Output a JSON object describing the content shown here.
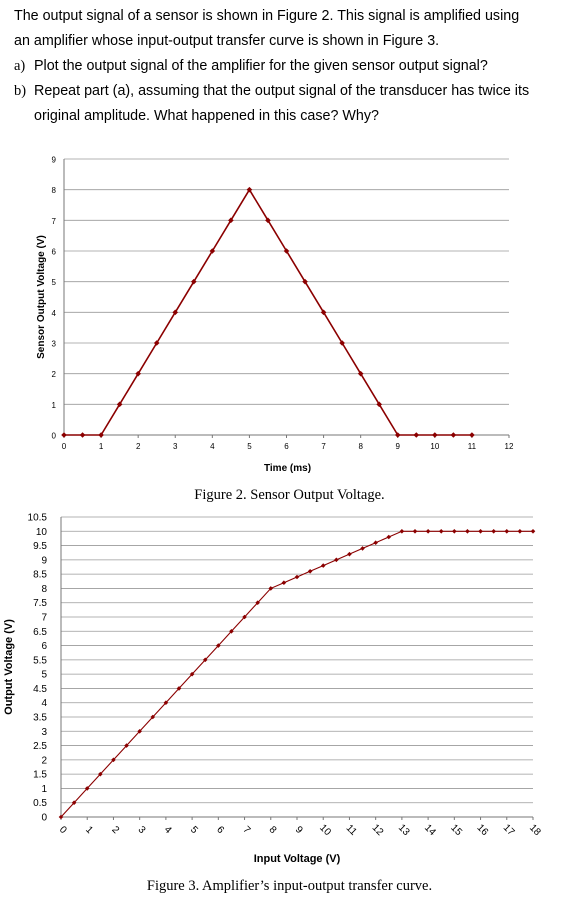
{
  "problem": {
    "intro_line1": "The output signal of a sensor is shown in Figure 2.  This signal is amplified using",
    "intro_line2": "an amplifier whose input-output transfer curve is shown in Figure 3.",
    "a_label": "a)",
    "a_text": "Plot the output signal of the amplifier for the given sensor output signal?",
    "b_label": "b)",
    "b_text_line1": "Repeat part (a), assuming that the output signal of the transducer has twice its",
    "b_text_line2": "original amplitude.  What happened in this case?  Why?"
  },
  "figure2": {
    "caption": "Figure 2. Sensor Output Voltage."
  },
  "figure3": {
    "caption": "Figure 3. Amplifier’s input-output transfer curve."
  },
  "chart_data": [
    {
      "type": "line",
      "xlabel": "Time (ms)",
      "ylabel": "Sensor Output Voltage (V)",
      "xlim": [
        0,
        12
      ],
      "ylim": [
        0,
        9
      ],
      "xticks": [
        "0",
        "1",
        "2",
        "3",
        "4",
        "5",
        "6",
        "7",
        "8",
        "9",
        "10",
        "11",
        "12"
      ],
      "yticks": [
        "0",
        "1",
        "2",
        "3",
        "4",
        "5",
        "6",
        "7",
        "8",
        "9"
      ],
      "grid": "horizontal",
      "color": "#8b0000",
      "x": [
        0,
        0.5,
        1,
        1.5,
        2,
        2.5,
        3,
        3.5,
        4,
        4.5,
        5,
        5.5,
        6,
        6.5,
        7,
        7.5,
        8,
        8.5,
        9,
        9.5,
        10,
        10.5,
        11
      ],
      "y": [
        0,
        0,
        0,
        1,
        2,
        3,
        4,
        5,
        6,
        7,
        8,
        7,
        6,
        5,
        4,
        3,
        2,
        1,
        0,
        0,
        0,
        0,
        0
      ]
    },
    {
      "type": "line",
      "xlabel": "Input Voltage (V)",
      "ylabel": "Output Voltage (V)",
      "xlim": [
        0,
        18
      ],
      "ylim": [
        0,
        10.5
      ],
      "xticks": [
        "0",
        "1",
        "2",
        "3",
        "4",
        "5",
        "6",
        "7",
        "8",
        "9",
        "10",
        "11",
        "12",
        "13",
        "14",
        "15",
        "16",
        "17",
        "18"
      ],
      "yticks": [
        "0",
        "0.5",
        "1",
        "1.5",
        "2",
        "2.5",
        "3",
        "3.5",
        "4",
        "4.5",
        "5",
        "5.5",
        "6",
        "6.5",
        "7",
        "7.5",
        "8",
        "8.5",
        "9",
        "9.5",
        "10",
        "10.5"
      ],
      "grid": "horizontal",
      "color": "#8b0000",
      "x": [
        0,
        0.5,
        1,
        1.5,
        2,
        2.5,
        3,
        3.5,
        4,
        4.5,
        5,
        5.5,
        6,
        6.5,
        7,
        7.5,
        8,
        8.5,
        9,
        9.5,
        10,
        10.5,
        11,
        11.5,
        12,
        12.5,
        13,
        13.5,
        14,
        14.5,
        15,
        15.5,
        16,
        16.5,
        17,
        17.5,
        18
      ],
      "y": [
        0,
        0.5,
        1,
        1.5,
        2,
        2.5,
        3,
        3.5,
        4,
        4.5,
        5,
        5.5,
        6,
        6.5,
        7,
        7.5,
        8,
        8.2,
        8.4,
        8.6,
        8.8,
        9,
        9.2,
        9.4,
        9.6,
        9.8,
        10,
        10,
        10,
        10,
        10,
        10,
        10,
        10,
        10,
        10,
        10
      ]
    }
  ]
}
